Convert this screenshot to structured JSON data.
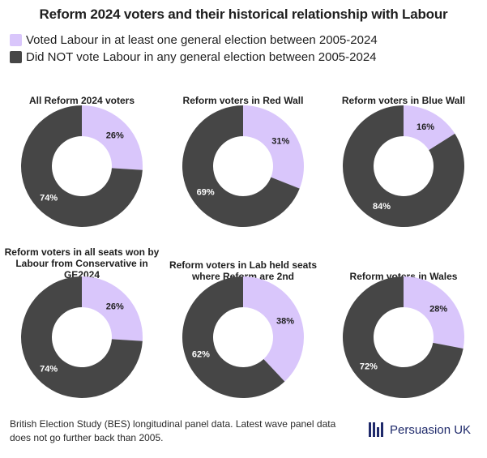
{
  "title": "Reform 2024 voters and their historical relationship with Labour",
  "legend": [
    {
      "label": "Voted Labour in at least one general election between 2005-2024",
      "color": "#d9c6fb"
    },
    {
      "label": "Did NOT vote Labour in any general election between 2005-2024",
      "color": "#464646"
    }
  ],
  "chart_data": [
    {
      "type": "pie",
      "title": "All Reform 2024 voters",
      "labels": [
        "Voted Labour in at least one general election between 2005-2024",
        "Did NOT vote Labour in any general election between 2005-2024"
      ],
      "values": [
        26,
        74
      ],
      "value_labels": [
        "26%",
        "74%"
      ]
    },
    {
      "type": "pie",
      "title": "Reform voters in Red Wall",
      "labels": [
        "Voted Labour in at least one general election between 2005-2024",
        "Did NOT vote Labour in any general election between 2005-2024"
      ],
      "values": [
        31,
        69
      ],
      "value_labels": [
        "31%",
        "69%"
      ]
    },
    {
      "type": "pie",
      "title": "Reform voters in Blue Wall",
      "labels": [
        "Voted Labour in at least one general election between 2005-2024",
        "Did NOT vote Labour in any general election between 2005-2024"
      ],
      "values": [
        16,
        84
      ],
      "value_labels": [
        "16%",
        "84%"
      ]
    },
    {
      "type": "pie",
      "title": "Reform voters in all seats won by Labour from Conservative in GE2024",
      "labels": [
        "Voted Labour in at least one general election between 2005-2024",
        "Did NOT vote Labour in any general election between 2005-2024"
      ],
      "values": [
        26,
        74
      ],
      "value_labels": [
        "26%",
        "74%"
      ]
    },
    {
      "type": "pie",
      "title": "Reform voters in Lab held seats where Reform are 2nd",
      "labels": [
        "Voted Labour in at least one general election between 2005-2024",
        "Did NOT vote Labour in any general election between 2005-2024"
      ],
      "values": [
        38,
        62
      ],
      "value_labels": [
        "38%",
        "62%"
      ]
    },
    {
      "type": "pie",
      "title": "Reform voters in Wales",
      "labels": [
        "Voted Labour in at least one general election between 2005-2024",
        "Did NOT vote Labour in any general election between 2005-2024"
      ],
      "values": [
        28,
        72
      ],
      "value_labels": [
        "28%",
        "72%"
      ]
    }
  ],
  "footnote": "British Election Study (BES) longitudinal panel data. Latest wave panel data does not go further back than 2005.",
  "brand": {
    "name": "Persuasion UK",
    "color": "#1f2a6b"
  }
}
